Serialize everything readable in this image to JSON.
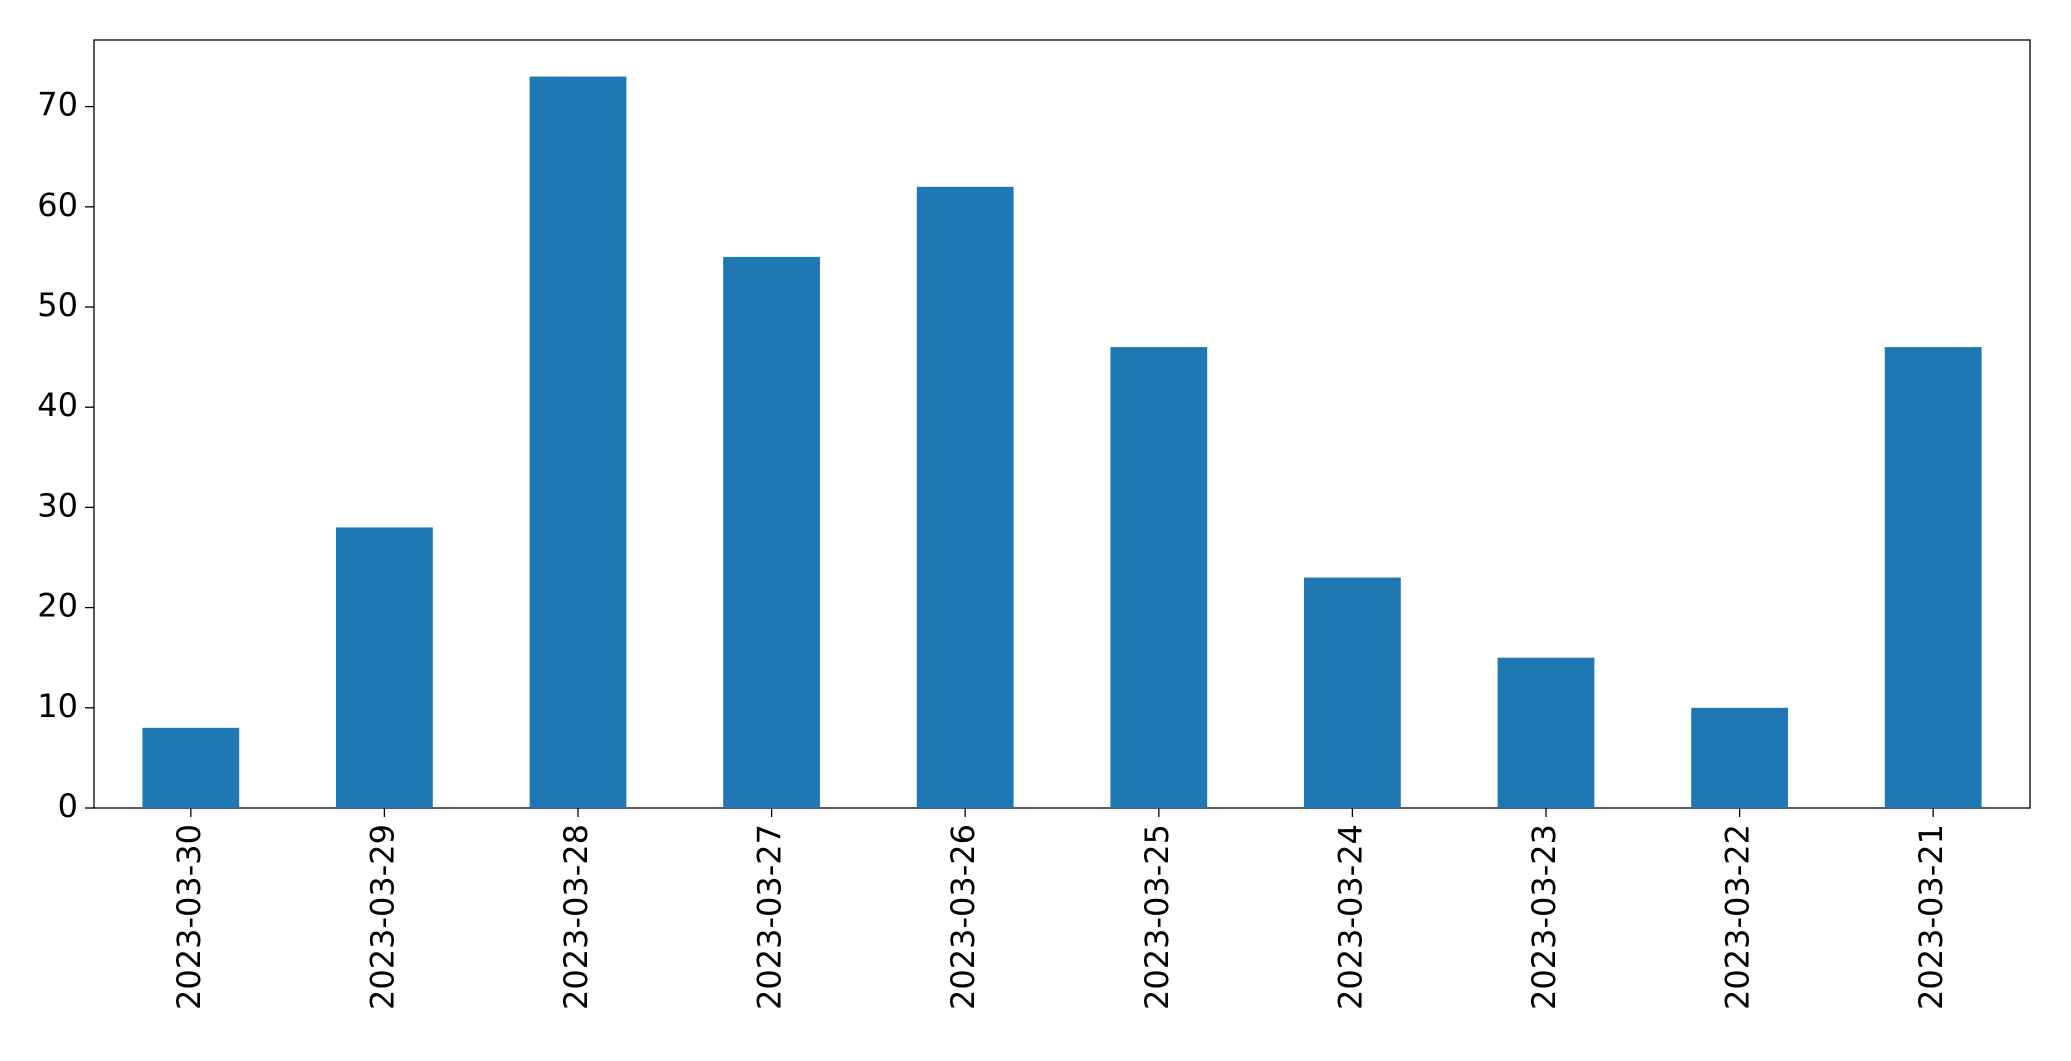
{
  "chart_data": {
    "type": "bar",
    "categories": [
      "2023-03-30",
      "2023-03-29",
      "2023-03-28",
      "2023-03-27",
      "2023-03-26",
      "2023-03-25",
      "2023-03-24",
      "2023-03-23",
      "2023-03-22",
      "2023-03-21"
    ],
    "values": [
      8,
      28,
      73,
      55,
      62,
      46,
      23,
      15,
      10,
      46
    ],
    "color": "#1f77b4",
    "ylim": [
      0,
      76.65
    ],
    "yticks": [
      0,
      10,
      20,
      30,
      40,
      50,
      60,
      70
    ],
    "grid": false
  }
}
